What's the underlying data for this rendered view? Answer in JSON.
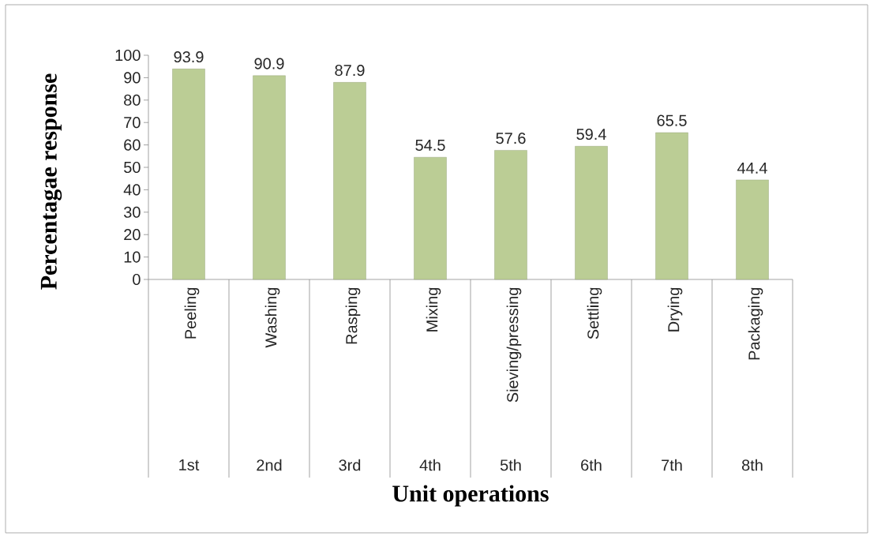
{
  "chart_data": {
    "type": "bar",
    "xlabel": "Unit operations",
    "ylabel": "Percentagae response",
    "categories": [
      "Peeling",
      "Washing",
      "Rasping",
      "Mixing",
      "Sieving/pressing",
      "Settling",
      "Drying",
      "Packaging"
    ],
    "values": [
      93.9,
      90.9,
      87.9,
      54.5,
      57.6,
      59.4,
      65.5,
      44.4
    ],
    "color": "#bbcd95",
    "ylim": [
      0,
      100
    ],
    "yticks": [
      0,
      10,
      20,
      30,
      40,
      50,
      60,
      70,
      80,
      90,
      100
    ],
    "data_labels": true,
    "annotations": [
      "1st",
      "2nd",
      "3rd",
      "4th",
      "5th",
      "6th",
      "7th",
      "8th"
    ]
  }
}
